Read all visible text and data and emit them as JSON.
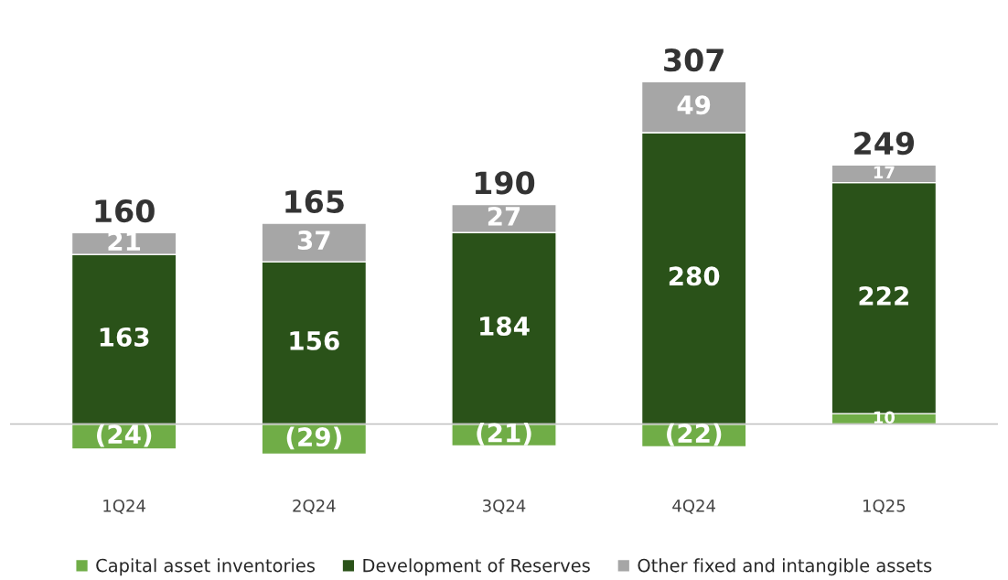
{
  "chart_data": {
    "type": "bar",
    "stacked": true,
    "categories": [
      "1Q24",
      "2Q24",
      "3Q24",
      "4Q24",
      "1Q25"
    ],
    "series": [
      {
        "name": "Capital asset inventories",
        "color": "#70ad47",
        "values": [
          -24,
          -29,
          -21,
          -22,
          10
        ],
        "value_labels": [
          "(24)",
          "(29)",
          "(21)",
          "(22)",
          "10"
        ]
      },
      {
        "name": "Development of Reserves",
        "color": "#2a5219",
        "values": [
          163,
          156,
          184,
          280,
          222
        ],
        "value_labels": [
          "163",
          "156",
          "184",
          "280",
          "222"
        ]
      },
      {
        "name": "Other fixed and intangible assets",
        "color": "#a6a6a6",
        "values": [
          21,
          37,
          27,
          49,
          17
        ],
        "value_labels": [
          "21",
          "37",
          "27",
          "49",
          "17"
        ]
      }
    ],
    "totals": [
      "160",
      "165",
      "190",
      "307",
      "249"
    ],
    "legend": "bottom",
    "grid": false,
    "tick_labels": "x"
  }
}
